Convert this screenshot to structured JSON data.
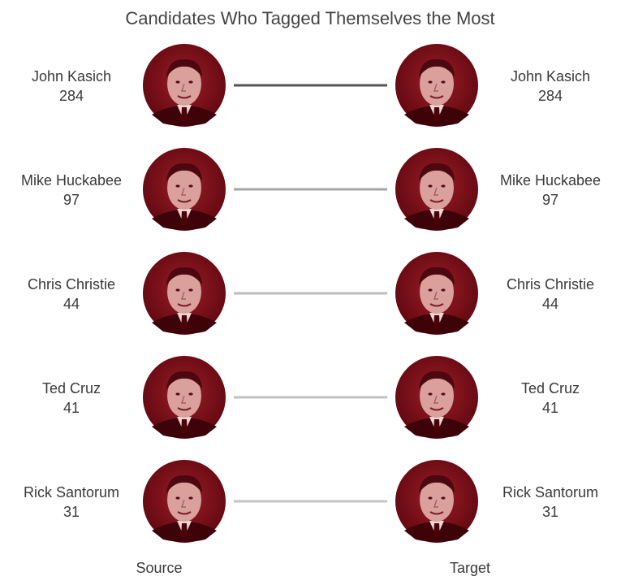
{
  "chart_data": {
    "type": "line",
    "title": "Candidates Who Tagged Themselves the Most",
    "source_label": "Source",
    "target_label": "Target",
    "categories": [
      "John Kasich",
      "Mike Huckabee",
      "Chris Christie",
      "Ted Cruz",
      "Rick Santorum"
    ],
    "values": [
      284,
      97,
      44,
      41,
      31
    ],
    "portrait_color": "#7a0a14",
    "line_color_max": "#555555",
    "line_color_min": "#c4c4c4"
  }
}
